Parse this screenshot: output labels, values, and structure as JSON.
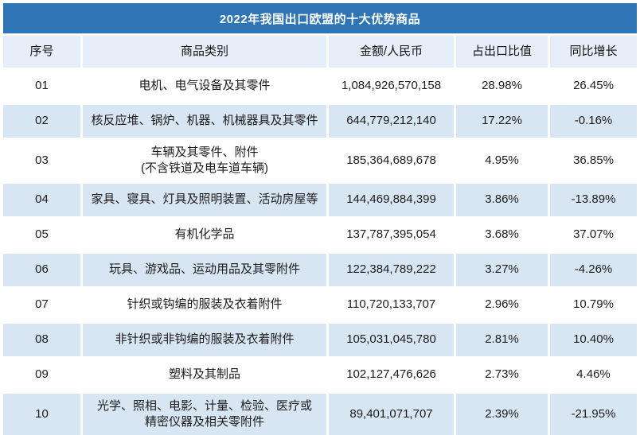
{
  "title": "2022年我国出口欧盟的十大优势商品",
  "colors": {
    "title_bg": "#2E75B6",
    "title_text": "#FFFFFF",
    "header_row_bg": "#E5EEF9",
    "band_row_bg": "#D8E6F4",
    "plain_row_bg": "#FFFFFF",
    "body_text": "#1B1B1B"
  },
  "table": {
    "columns": [
      "序号",
      "商品类别",
      "金额/人民币",
      "占出口比值",
      "同比增长"
    ],
    "rows": [
      {
        "no": "01",
        "category": "电机、电气设备及其零件",
        "amount": "1,084,926,570,158",
        "share": "28.98%",
        "yoy": "26.45%"
      },
      {
        "no": "02",
        "category": "核反应堆、锅炉、机器、机械器具及其零件",
        "amount": "644,779,212,140",
        "share": "17.22%",
        "yoy": "-0.16%"
      },
      {
        "no": "03",
        "category": "车辆及其零件、附件\n(不含铁道及电车道车辆)",
        "amount": "185,364,689,678",
        "share": "4.95%",
        "yoy": "36.85%"
      },
      {
        "no": "04",
        "category": "家具、寝具、灯具及照明装置、活动房屋等",
        "amount": "144,469,884,399",
        "share": "3.86%",
        "yoy": "-13.89%"
      },
      {
        "no": "05",
        "category": "有机化学品",
        "amount": "137,787,395,054",
        "share": "3.68%",
        "yoy": "37.07%"
      },
      {
        "no": "06",
        "category": "玩具、游戏品、运动用品及其零附件",
        "amount": "122,384,789,222",
        "share": "3.27%",
        "yoy": "-4.26%"
      },
      {
        "no": "07",
        "category": "针织或钩编的服装及衣着附件",
        "amount": "110,720,133,707",
        "share": "2.96%",
        "yoy": "10.79%"
      },
      {
        "no": "08",
        "category": "非针织或非钩编的服装及衣着附件",
        "amount": "105,031,045,780",
        "share": "2.81%",
        "yoy": "10.40%"
      },
      {
        "no": "09",
        "category": "塑料及其制品",
        "amount": "102,127,476,626",
        "share": "2.73%",
        "yoy": "4.46%"
      },
      {
        "no": "10",
        "category": "光学、照相、电影、计量、检验、医疗或\n精密仪器及相关零附件",
        "amount": "89,401,071,707",
        "share": "2.39%",
        "yoy": "-21.95%"
      }
    ]
  }
}
